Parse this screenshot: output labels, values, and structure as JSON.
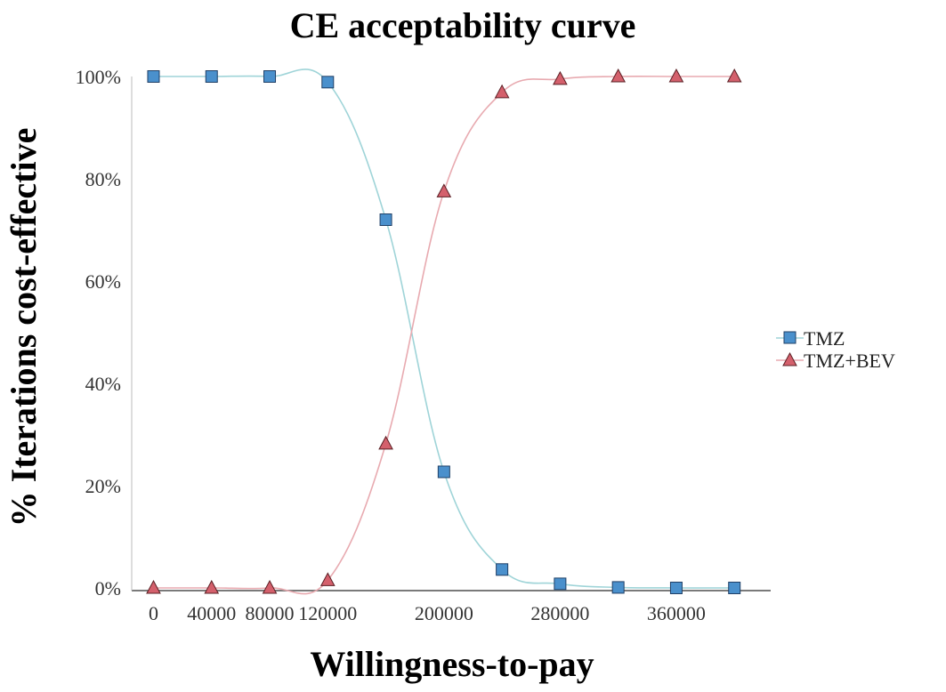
{
  "chart_data": {
    "type": "line",
    "title": "CE acceptability curve",
    "xlabel": "Willingness-to-pay",
    "ylabel": "% Iterations cost-effective",
    "x": [
      0,
      40000,
      80000,
      120000,
      160000,
      200000,
      240000,
      280000,
      320000,
      360000,
      400000
    ],
    "xticks": [
      0,
      40000,
      80000,
      120000,
      200000,
      280000,
      360000
    ],
    "yticks": [
      0,
      20,
      40,
      60,
      80,
      100
    ],
    "ytick_suffix": "%",
    "xlim": [
      -15000,
      425000
    ],
    "ylim": [
      0,
      100
    ],
    "grid": false,
    "legend_position": "right",
    "series": [
      {
        "name": "TMZ",
        "marker": "square",
        "line_color": "#9fd4d8",
        "marker_fill": "#4a90cc",
        "marker_stroke": "#1f3f66",
        "values": [
          100,
          100,
          100,
          98.9,
          72,
          22.7,
          3.6,
          0.8,
          0.1,
          0,
          0
        ]
      },
      {
        "name": "TMZ+BEV",
        "marker": "triangle",
        "line_color": "#e8aab0",
        "marker_fill": "#d4606c",
        "marker_stroke": "#5a1f24",
        "values": [
          0,
          0,
          0,
          1.5,
          28.2,
          77.5,
          96.9,
          99.5,
          100,
          100,
          100
        ]
      }
    ]
  }
}
